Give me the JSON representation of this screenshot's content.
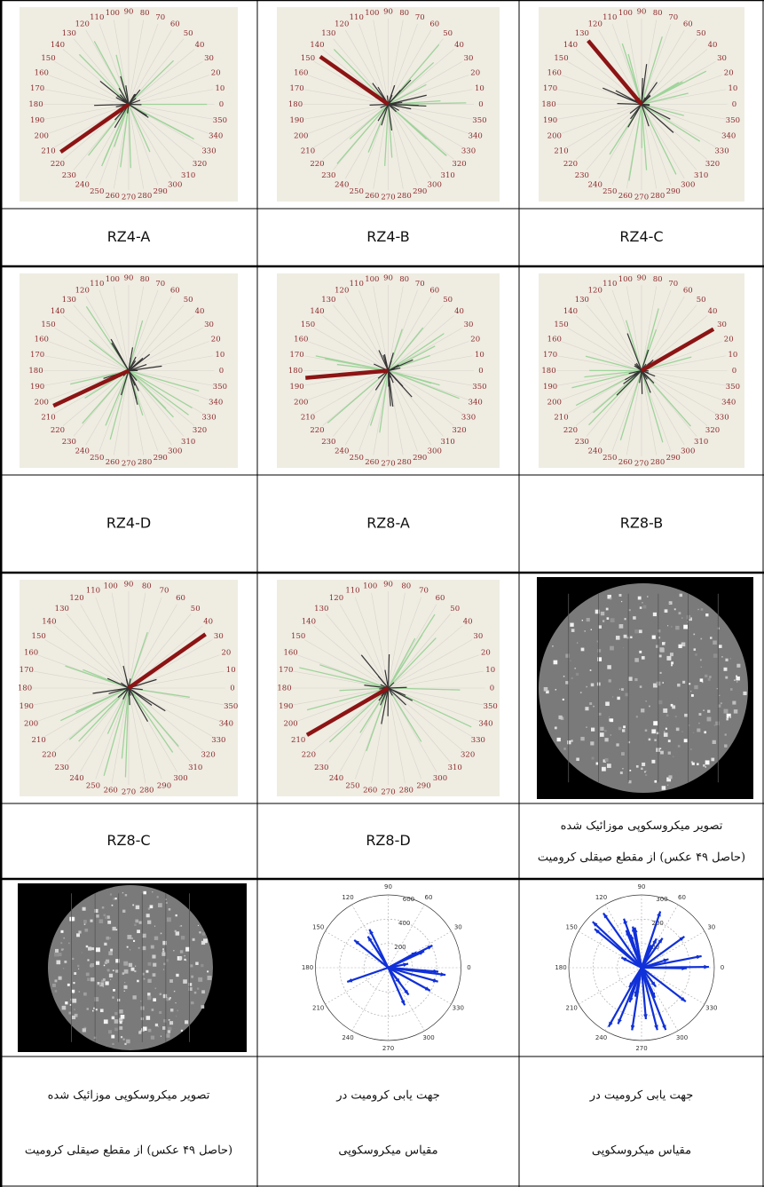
{
  "rose_labels": [
    0,
    10,
    20,
    30,
    40,
    50,
    60,
    70,
    80,
    90,
    100,
    110,
    120,
    130,
    140,
    150,
    160,
    170,
    180,
    190,
    200,
    210,
    220,
    230,
    240,
    250,
    260,
    270,
    280,
    290,
    300,
    310,
    320,
    330,
    340,
    350
  ],
  "roses": [
    {
      "direction": 215,
      "caption": "RZ4-A"
    },
    {
      "direction": 145,
      "caption": "RZ4-B"
    },
    {
      "direction": 130,
      "caption": "RZ4-C"
    },
    {
      "direction": 205,
      "caption": "RZ4-D"
    },
    {
      "direction": 185,
      "caption": "RZ8-A"
    },
    {
      "direction": 30,
      "caption": "RZ8-B"
    },
    {
      "direction": 35,
      "caption": "RZ8-C"
    },
    {
      "direction": 210,
      "caption": "RZ8-D"
    }
  ],
  "micrographs": [
    {
      "caption": [
        "تصویر میکروسکوپی موزائیک شده",
        "(حاصل ۴۹ عکس) از مقطع صیقلی کرومیت"
      ]
    },
    {
      "caption": [
        "تصویر میکروسکوپی موزائیک شده",
        "(حاصل ۴۹ عکس) از مقطع صیقلی کرومیت"
      ]
    }
  ],
  "polar_angle_labels": [
    0,
    30,
    60,
    90,
    120,
    150,
    180,
    210,
    240,
    270,
    300,
    330
  ],
  "polar_plots": [
    {
      "radial_labels": [
        200,
        400,
        600
      ],
      "caption": [
        "جهت یابی کرومیت در",
        "مقیاس میکروسکوپی"
      ]
    },
    {
      "radial_labels": [
        100,
        200,
        300
      ],
      "caption": [
        "جهت یابی کرومیت در",
        "مقیاس میکروسکوپی"
      ]
    }
  ]
}
